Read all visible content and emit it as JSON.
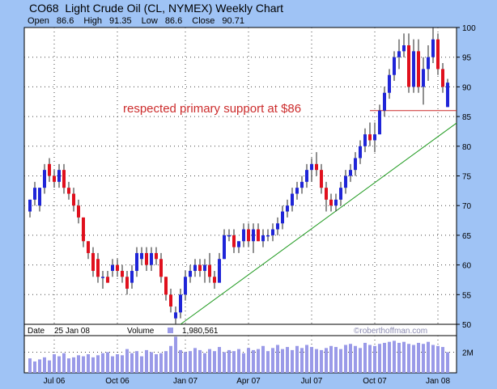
{
  "header": {
    "symbol": "CO68",
    "title": "Light Crude Oil (CL, NYMEX) Weekly Chart",
    "ohlc": {
      "open_label": "Open",
      "open": "86.6",
      "high_label": "High",
      "high": "91.35",
      "low_label": "Low",
      "low": "86.6",
      "close_label": "Close",
      "close": "90.71"
    }
  },
  "info": {
    "date_label": "Date",
    "date": "25 Jan 08",
    "volume_label": "Volume",
    "volume": "1,980,561",
    "watermark": "©roberthoffman.com"
  },
  "annotation": {
    "text": "respected primary support at $86",
    "support_level": 86
  },
  "colors": {
    "up": "#1f25d8",
    "down": "#e0101d",
    "support": "#cc2c2c",
    "trend": "#1f9a1f",
    "volume": "#9a9ae8",
    "background": "#9fc3f5",
    "plot": "#ffffff"
  },
  "chart_data": {
    "type": "candlestick",
    "y_axis": {
      "min": 50,
      "max": 100,
      "ticks": [
        50,
        55,
        60,
        65,
        70,
        75,
        80,
        85,
        90,
        95,
        100
      ]
    },
    "x_axis": {
      "ticks": [
        {
          "index": 5,
          "label": "Jul 06"
        },
        {
          "index": 18,
          "label": "Oct 06"
        },
        {
          "index": 32,
          "label": "Jan 07"
        },
        {
          "index": 45,
          "label": "Apr 07"
        },
        {
          "index": 58,
          "label": "Jul 07"
        },
        {
          "index": 71,
          "label": "Oct 07"
        },
        {
          "index": 84,
          "label": "Jan 08"
        }
      ]
    },
    "candles": [
      {
        "o": 69,
        "h": 71,
        "l": 68,
        "c": 71
      },
      {
        "o": 71,
        "h": 74,
        "l": 70,
        "c": 73
      },
      {
        "o": 70,
        "h": 73,
        "l": 69,
        "c": 73
      },
      {
        "o": 73,
        "h": 77,
        "l": 72,
        "c": 76
      },
      {
        "o": 77,
        "h": 78,
        "l": 74,
        "c": 75
      },
      {
        "o": 75,
        "h": 76,
        "l": 73,
        "c": 74
      },
      {
        "o": 74,
        "h": 77,
        "l": 73,
        "c": 76
      },
      {
        "o": 76,
        "h": 77,
        "l": 72,
        "c": 73
      },
      {
        "o": 73,
        "h": 74,
        "l": 71,
        "c": 72
      },
      {
        "o": 72,
        "h": 73,
        "l": 69,
        "c": 70
      },
      {
        "o": 70,
        "h": 71,
        "l": 67,
        "c": 68
      },
      {
        "o": 68,
        "h": 68,
        "l": 63,
        "c": 64
      },
      {
        "o": 64,
        "h": 64,
        "l": 61,
        "c": 62
      },
      {
        "o": 62,
        "h": 63,
        "l": 58,
        "c": 59
      },
      {
        "o": 61,
        "h": 62,
        "l": 57,
        "c": 58
      },
      {
        "o": 58,
        "h": 59,
        "l": 56,
        "c": 58
      },
      {
        "o": 58,
        "h": 59,
        "l": 57,
        "c": 57
      },
      {
        "o": 59,
        "h": 61,
        "l": 58,
        "c": 60
      },
      {
        "o": 60,
        "h": 61,
        "l": 58,
        "c": 59
      },
      {
        "o": 59,
        "h": 60,
        "l": 57,
        "c": 58
      },
      {
        "o": 58,
        "h": 59,
        "l": 55,
        "c": 56
      },
      {
        "o": 57,
        "h": 60,
        "l": 56,
        "c": 59
      },
      {
        "o": 59,
        "h": 63,
        "l": 58,
        "c": 62
      },
      {
        "o": 61,
        "h": 63,
        "l": 60,
        "c": 62
      },
      {
        "o": 62,
        "h": 63,
        "l": 59,
        "c": 60
      },
      {
        "o": 60,
        "h": 63,
        "l": 59,
        "c": 62
      },
      {
        "o": 62,
        "h": 63,
        "l": 60,
        "c": 61
      },
      {
        "o": 61,
        "h": 62,
        "l": 57,
        "c": 58
      },
      {
        "o": 58,
        "h": 58,
        "l": 54,
        "c": 55
      },
      {
        "o": 55,
        "h": 56,
        "l": 52,
        "c": 53
      },
      {
        "o": 51,
        "h": 53,
        "l": 50,
        "c": 52
      },
      {
        "o": 52,
        "h": 56,
        "l": 51,
        "c": 55
      },
      {
        "o": 55,
        "h": 59,
        "l": 54,
        "c": 58
      },
      {
        "o": 58,
        "h": 60,
        "l": 57,
        "c": 59
      },
      {
        "o": 59,
        "h": 61,
        "l": 58,
        "c": 60
      },
      {
        "o": 60,
        "h": 61,
        "l": 58,
        "c": 59
      },
      {
        "o": 59,
        "h": 61,
        "l": 57,
        "c": 60
      },
      {
        "o": 60,
        "h": 62,
        "l": 57,
        "c": 58
      },
      {
        "o": 58,
        "h": 59,
        "l": 56,
        "c": 57
      },
      {
        "o": 57,
        "h": 62,
        "l": 57,
        "c": 61
      },
      {
        "o": 61,
        "h": 66,
        "l": 61,
        "c": 65
      },
      {
        "o": 65,
        "h": 66,
        "l": 64,
        "c": 65
      },
      {
        "o": 65,
        "h": 66,
        "l": 62,
        "c": 63
      },
      {
        "o": 63,
        "h": 64,
        "l": 62,
        "c": 64
      },
      {
        "o": 64,
        "h": 67,
        "l": 63,
        "c": 66
      },
      {
        "o": 66,
        "h": 67,
        "l": 63,
        "c": 64
      },
      {
        "o": 64,
        "h": 67,
        "l": 62,
        "c": 66
      },
      {
        "o": 66,
        "h": 67,
        "l": 64,
        "c": 64
      },
      {
        "o": 64,
        "h": 66,
        "l": 63,
        "c": 65
      },
      {
        "o": 65,
        "h": 66,
        "l": 64,
        "c": 65
      },
      {
        "o": 65,
        "h": 67,
        "l": 64,
        "c": 66
      },
      {
        "o": 66,
        "h": 68,
        "l": 65,
        "c": 67
      },
      {
        "o": 67,
        "h": 70,
        "l": 66,
        "c": 69
      },
      {
        "o": 69,
        "h": 71,
        "l": 68,
        "c": 70
      },
      {
        "o": 70,
        "h": 73,
        "l": 69,
        "c": 72
      },
      {
        "o": 72,
        "h": 74,
        "l": 71,
        "c": 73
      },
      {
        "o": 73,
        "h": 75,
        "l": 72,
        "c": 74
      },
      {
        "o": 74,
        "h": 77,
        "l": 73,
        "c": 76
      },
      {
        "o": 76,
        "h": 78,
        "l": 74,
        "c": 77
      },
      {
        "o": 77,
        "h": 79,
        "l": 75,
        "c": 76
      },
      {
        "o": 76,
        "h": 77,
        "l": 72,
        "c": 73
      },
      {
        "o": 73,
        "h": 74,
        "l": 69,
        "c": 71
      },
      {
        "o": 71,
        "h": 72,
        "l": 69,
        "c": 70
      },
      {
        "o": 70,
        "h": 72,
        "l": 69,
        "c": 71
      },
      {
        "o": 71,
        "h": 74,
        "l": 70,
        "c": 73
      },
      {
        "o": 73,
        "h": 76,
        "l": 72,
        "c": 75
      },
      {
        "o": 75,
        "h": 77,
        "l": 74,
        "c": 76
      },
      {
        "o": 76,
        "h": 79,
        "l": 75,
        "c": 78
      },
      {
        "o": 78,
        "h": 81,
        "l": 77,
        "c": 80
      },
      {
        "o": 80,
        "h": 83,
        "l": 79,
        "c": 82
      },
      {
        "o": 82,
        "h": 84,
        "l": 80,
        "c": 81
      },
      {
        "o": 81,
        "h": 84,
        "l": 79,
        "c": 82
      },
      {
        "o": 82,
        "h": 87,
        "l": 82,
        "c": 86
      },
      {
        "o": 86,
        "h": 90,
        "l": 85,
        "c": 89
      },
      {
        "o": 89,
        "h": 93,
        "l": 88,
        "c": 92
      },
      {
        "o": 92,
        "h": 96,
        "l": 91,
        "c": 95
      },
      {
        "o": 95,
        "h": 98,
        "l": 93,
        "c": 96
      },
      {
        "o": 96,
        "h": 99,
        "l": 95,
        "c": 97
      },
      {
        "o": 97,
        "h": 99,
        "l": 89,
        "c": 90
      },
      {
        "o": 90,
        "h": 98,
        "l": 89,
        "c": 96
      },
      {
        "o": 96,
        "h": 98,
        "l": 89,
        "c": 90
      },
      {
        "o": 90,
        "h": 95,
        "l": 87,
        "c": 93
      },
      {
        "o": 93,
        "h": 97,
        "l": 91,
        "c": 95
      },
      {
        "o": 95,
        "h": 100,
        "l": 94,
        "c": 98
      },
      {
        "o": 98,
        "h": 99,
        "l": 92,
        "c": 93
      },
      {
        "o": 93,
        "h": 94,
        "l": 89,
        "c": 90
      },
      {
        "o": 86.6,
        "h": 91.35,
        "l": 86.6,
        "c": 90.71
      }
    ],
    "volume": {
      "label": "2M",
      "tick_value": 2000000,
      "max": 3600000,
      "values": [
        1400000,
        1100000,
        1300000,
        1500000,
        1200000,
        1800000,
        1600000,
        1900000,
        1400000,
        1500000,
        1700000,
        1600000,
        1800000,
        1500000,
        1700000,
        1900000,
        2000000,
        1600000,
        1800000,
        1700000,
        2300000,
        1900000,
        2100000,
        1600000,
        2200000,
        2000000,
        1800000,
        1900000,
        2100000,
        2600000,
        3500000,
        2200000,
        2000000,
        2100000,
        2400000,
        2200000,
        1900000,
        2300000,
        2100000,
        2500000,
        2000000,
        2200000,
        2100000,
        2300000,
        1900000,
        2400000,
        2200000,
        2300000,
        2600000,
        2100000,
        2400000,
        2700000,
        2300000,
        2500000,
        2200000,
        2600000,
        2400000,
        2700000,
        2500000,
        2300000,
        2200000,
        2400000,
        2600000,
        2500000,
        2300000,
        2700000,
        2800000,
        2600000,
        2400000,
        2900000,
        2700000,
        2600000,
        2800000,
        2900000,
        3000000,
        3100000,
        2900000,
        3000000,
        2800000,
        2700000,
        2900000,
        2800000,
        3000000,
        2700000,
        2600000,
        2500000,
        2000000
      ]
    },
    "support": {
      "value": 86,
      "start_index": 70,
      "end_index": 88
    },
    "trendline": {
      "start": {
        "index": 31,
        "value": 50
      },
      "end": {
        "index": 88,
        "value": 84
      }
    }
  }
}
